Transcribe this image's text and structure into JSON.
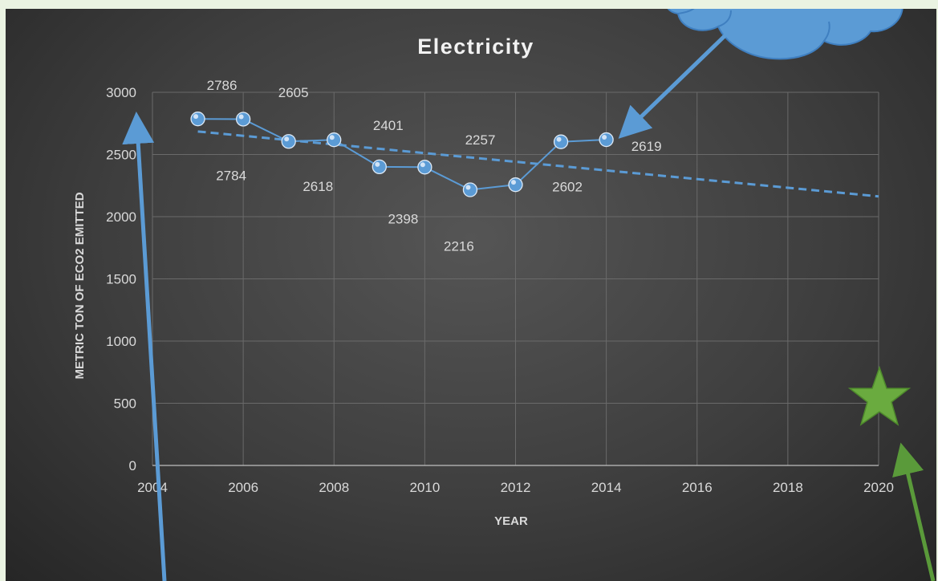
{
  "chart_data": {
    "type": "line",
    "title": "Electricity",
    "xlabel": "YEAR",
    "ylabel": "METRIC TON OF ECO2 EMITTED",
    "xlim": [
      2004,
      2020
    ],
    "ylim": [
      0,
      3000
    ],
    "x_ticks": [
      "2004",
      "2006",
      "2008",
      "2010",
      "2012",
      "2014",
      "2016",
      "2018",
      "2020"
    ],
    "y_ticks": [
      "0",
      "500",
      "1000",
      "1500",
      "2000",
      "2500",
      "3000"
    ],
    "grid": true,
    "series": [
      {
        "x": [
          2005,
          2006,
          2007,
          2008,
          2009,
          2010,
          2011,
          2012,
          2013,
          2014
        ],
        "values": [
          2786,
          2784,
          2605,
          2618,
          2401,
          2398,
          2216,
          2257,
          2602,
          2619
        ],
        "labels": [
          "2786",
          "2784",
          "2605",
          "2618",
          "2401",
          "2398",
          "2216",
          "2257",
          "2602",
          "2619"
        ],
        "color": "#5b9bd5"
      }
    ],
    "trendline": {
      "type": "linear",
      "x_start": 2005,
      "y_start": 2685,
      "x_end": 2020,
      "y_end": 2163,
      "style": "dashed",
      "color": "#5b9bd5"
    }
  },
  "decorations": {
    "cloud_color": "#5b9bd5",
    "arrow_color": "#5b9bd5",
    "green_arrow_color": "#5a9a3a",
    "star_color": "#6aab3f"
  }
}
